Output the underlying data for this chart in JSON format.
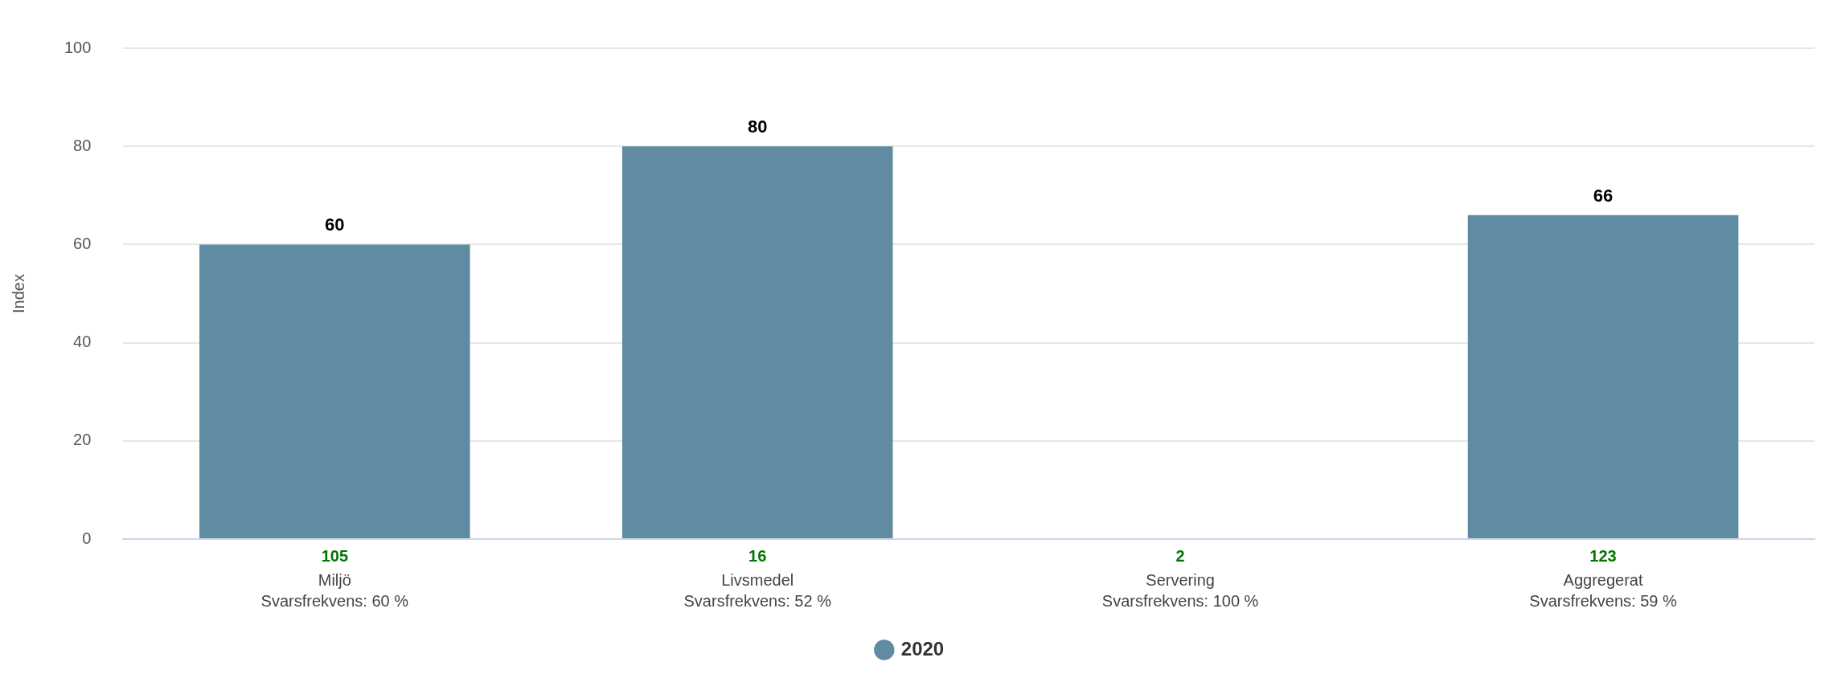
{
  "chart_data": {
    "type": "bar",
    "categories": [
      "Miljö",
      "Livsmedel",
      "Servering",
      "Aggregerat"
    ],
    "series": [
      {
        "name": "2020",
        "color": "#5f8ca3",
        "values": [
          60,
          80,
          null,
          66
        ]
      }
    ],
    "ylabel": "Index",
    "ylim": [
      0,
      100
    ],
    "yticks": [
      0,
      20,
      40,
      60,
      80,
      100
    ],
    "grid": "y",
    "legend": "bottom",
    "data_labels": true,
    "annotations": [
      "105",
      "Svarsfrekvens: 60 %",
      "16",
      "Svarsfrekvens: 52 %",
      "2",
      "Svarsfrekvens: 100 %",
      "123",
      "Svarsfrekvens: 59 %"
    ]
  }
}
